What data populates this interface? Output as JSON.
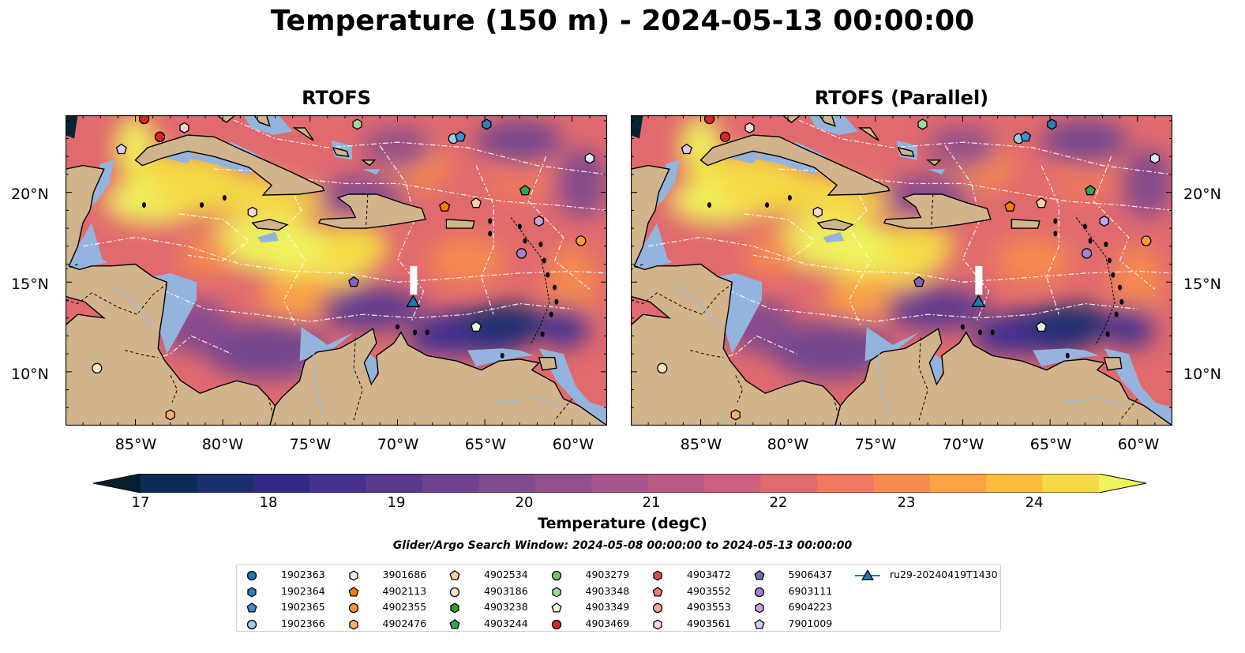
{
  "figure": {
    "title": "Temperature (150 m) - 2024-05-13 00:00:00",
    "panels": [
      {
        "title": "RTOFS"
      },
      {
        "title": "RTOFS (Parallel)"
      }
    ],
    "lat_labels": [
      "20°N",
      "15°N",
      "10°N"
    ],
    "lon_labels": [
      "85°W",
      "80°W",
      "75°W",
      "70°W",
      "65°W",
      "60°W"
    ],
    "colorbar": {
      "label": "Temperature (degC)",
      "ticks": [
        "17",
        "18",
        "19",
        "20",
        "21",
        "22",
        "23",
        "24"
      ],
      "colors": [
        "#04202e",
        "#0b2d55",
        "#1b2f6e",
        "#302a85",
        "#47318f",
        "#5a3a8f",
        "#6d438f",
        "#7f4a8e",
        "#924f8c",
        "#a6548a",
        "#ba5a85",
        "#cd607c",
        "#e06a6e",
        "#ef7860",
        "#f78a4f",
        "#fba244",
        "#fcbd3d",
        "#f6da45",
        "#eef25c"
      ]
    },
    "search_window": "Glider/Argo Search Window: 2024-05-08 00:00:00 to 2024-05-13 00:00:00",
    "map_colors": {
      "land": "#d2b48c",
      "shallow": "#94b4dd",
      "deep": "#052433"
    },
    "legend": [
      {
        "id": "1902363",
        "shape": "circle",
        "color": "#1f77b4"
      },
      {
        "id": "1902364",
        "shape": "hexagon",
        "color": "#2c7fb8"
      },
      {
        "id": "1902365",
        "shape": "pentagon",
        "color": "#3d8fd0"
      },
      {
        "id": "1902366",
        "shape": "circle",
        "color": "#9ecae1"
      },
      {
        "id": "3901686",
        "shape": "hexagon",
        "color": "#deebf7"
      },
      {
        "id": "4902113",
        "shape": "pentagon",
        "color": "#f57c00"
      },
      {
        "id": "4902355",
        "shape": "circle",
        "color": "#ff9833"
      },
      {
        "id": "4902476",
        "shape": "hexagon",
        "color": "#fdae6b"
      },
      {
        "id": "4902534",
        "shape": "pentagon",
        "color": "#fdd0a2"
      },
      {
        "id": "4903186",
        "shape": "circle",
        "color": "#fee6ce"
      },
      {
        "id": "4903238",
        "shape": "hexagon",
        "color": "#2ca02c"
      },
      {
        "id": "4903244",
        "shape": "pentagon",
        "color": "#31a354"
      },
      {
        "id": "4903279",
        "shape": "circle",
        "color": "#74c476"
      },
      {
        "id": "4903348",
        "shape": "hexagon",
        "color": "#a1d99b"
      },
      {
        "id": "4903349",
        "shape": "pentagon",
        "color": "#e5f5e0"
      },
      {
        "id": "4903469",
        "shape": "circle",
        "color": "#d62728"
      },
      {
        "id": "4903472",
        "shape": "hexagon",
        "color": "#e34a4a"
      },
      {
        "id": "4903552",
        "shape": "pentagon",
        "color": "#f07a7a"
      },
      {
        "id": "4903553",
        "shape": "circle",
        "color": "#f4a3a3"
      },
      {
        "id": "4903561",
        "shape": "hexagon",
        "color": "#fcd5d5"
      },
      {
        "id": "5906437",
        "shape": "pentagon",
        "color": "#8064b8"
      },
      {
        "id": "6903111",
        "shape": "circle",
        "color": "#a683d0"
      },
      {
        "id": "6904223",
        "shape": "hexagon",
        "color": "#c3a5e5"
      },
      {
        "id": "7901009",
        "shape": "pentagon",
        "color": "#dcc8f2"
      },
      {
        "id": "ru29-20240419T1430",
        "shape": "triangle-line",
        "color": "#1f77b4"
      }
    ],
    "markers": [
      {
        "id": "4903469",
        "lon": -84.5,
        "lat": 24.1
      },
      {
        "id": "4903561",
        "lon": -82.2,
        "lat": 23.6
      },
      {
        "id": "4903469",
        "lon": -83.6,
        "lat": 23.1
      },
      {
        "id": "7901009",
        "lon": -85.8,
        "lat": 22.4
      },
      {
        "id": "4903348",
        "lon": -72.3,
        "lat": 23.8
      },
      {
        "id": "1902366",
        "lon": -66.8,
        "lat": 23.0
      },
      {
        "id": "1902365",
        "lon": -66.4,
        "lat": 23.1
      },
      {
        "id": "1902364",
        "lon": -64.9,
        "lat": 23.8
      },
      {
        "id": "3901686",
        "lon": -59.0,
        "lat": 21.9
      },
      {
        "id": "4903244",
        "lon": -62.7,
        "lat": 20.1
      },
      {
        "id": "4902113",
        "lon": -67.3,
        "lat": 19.2
      },
      {
        "id": "4902534",
        "lon": -65.5,
        "lat": 19.4
      },
      {
        "id": "4903561",
        "lon": -78.3,
        "lat": 18.9
      },
      {
        "id": "6904223",
        "lon": -61.9,
        "lat": 18.4
      },
      {
        "id": "4902355",
        "lon": -59.5,
        "lat": 17.3
      },
      {
        "id": "6903111",
        "lon": -62.9,
        "lat": 16.6
      },
      {
        "id": "5906437",
        "lon": -72.5,
        "lat": 15.0
      },
      {
        "id": "4903349",
        "lon": -65.5,
        "lat": 12.5
      },
      {
        "id": "4903186",
        "lon": -87.2,
        "lat": 10.2
      },
      {
        "id": "4902476",
        "lon": -83.0,
        "lat": 7.6
      }
    ],
    "glider": {
      "id": "ru29-20240419T1430",
      "lon": -69.1,
      "lat": 13.9
    }
  }
}
